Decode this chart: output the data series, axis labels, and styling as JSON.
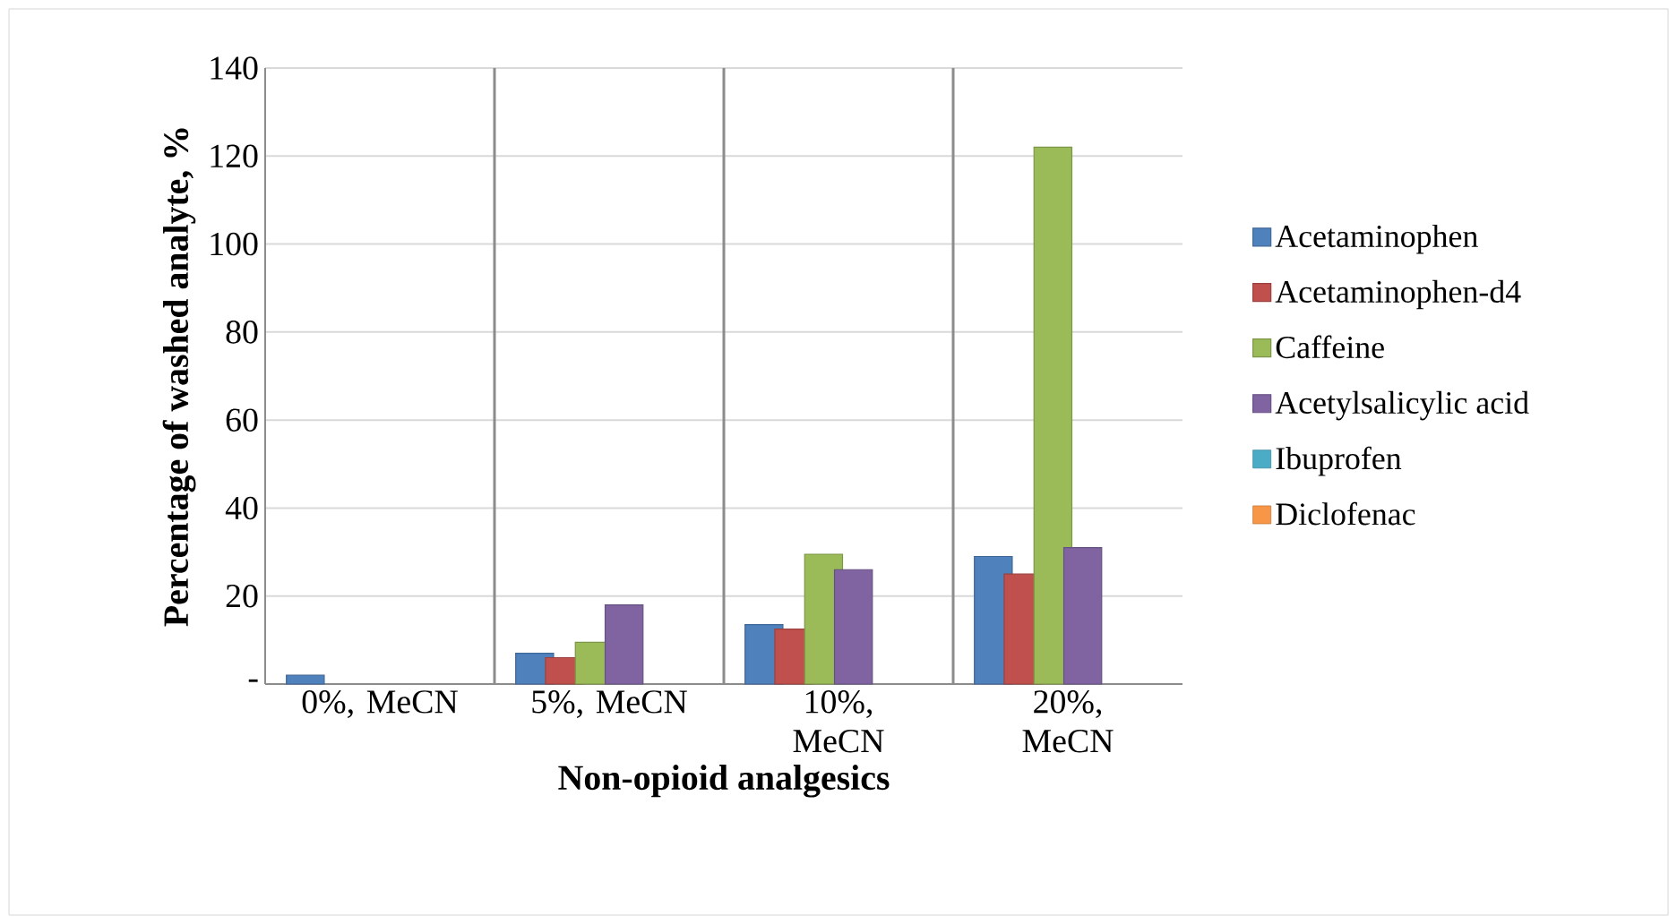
{
  "chart_data": {
    "type": "bar",
    "xlabel": "Non-opioid analgesics",
    "ylabel": "Percentage of washed analyte, %",
    "categories": [
      "0%, MeCN",
      "5%, MeCN",
      "10%, MeCN",
      "20%, MeCN"
    ],
    "series": [
      {
        "name": "Acetaminophen",
        "color": "#4f81bd",
        "values": [
          2,
          7,
          13.5,
          29
        ]
      },
      {
        "name": "Acetaminophen-d4",
        "color": "#c0504d",
        "values": [
          null,
          6,
          12.5,
          25
        ]
      },
      {
        "name": "Caffeine",
        "color": "#9bbb59",
        "values": [
          null,
          9.5,
          29.5,
          122
        ]
      },
      {
        "name": "Acetylsalicylic acid",
        "color": "#8064a2",
        "values": [
          null,
          18,
          26,
          31
        ]
      },
      {
        "name": "Ibuprofen",
        "color": "#4bacc6",
        "values": [
          null,
          null,
          null,
          null
        ]
      },
      {
        "name": "Diclofenac",
        "color": "#f79646",
        "values": [
          null,
          null,
          null,
          null
        ]
      }
    ],
    "ylim": [
      0,
      140
    ],
    "yticks": [
      {
        "value": 0,
        "label": "-"
      },
      20,
      40,
      60,
      80,
      100,
      120,
      140
    ],
    "grid": true,
    "legend": "right"
  }
}
